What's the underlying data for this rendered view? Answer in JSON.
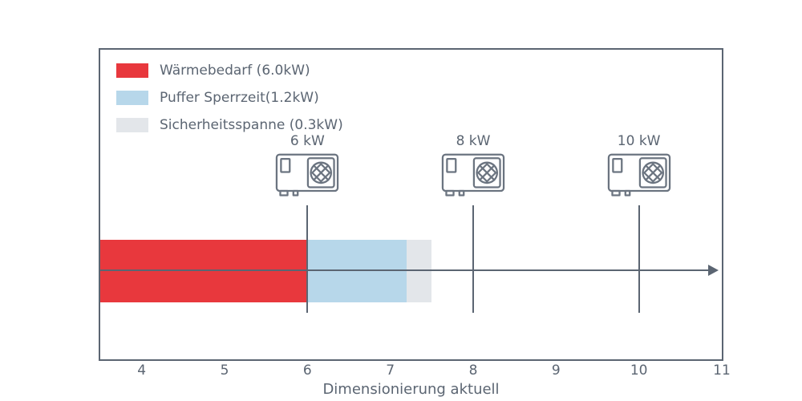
{
  "figure": {
    "background": "#ffffff",
    "axis_color": "#5b6572"
  },
  "chart_data": {
    "type": "bar",
    "orientation": "horizontal",
    "title": "",
    "xlabel": "Dimensionierung aktuell",
    "ylabel": "",
    "xlim": [
      3.5,
      11
    ],
    "x_ticks": [
      4,
      5,
      6,
      7,
      8,
      9,
      10,
      11
    ],
    "grid": false,
    "legend_position": "upper-left",
    "segments": [
      {
        "name": "Wärmebedarf",
        "legend_label": "Wärmebedarf (6.0kW)",
        "value_kw": 6.0,
        "start": 0,
        "end": 6.0,
        "color": "#e8383d"
      },
      {
        "name": "Puffer Sperrzeit",
        "legend_label": "Puffer Sperrzeit(1.2kW)",
        "value_kw": 1.2,
        "start": 6.0,
        "end": 7.2,
        "color": "#b7d7ea"
      },
      {
        "name": "Sicherheitsspanne",
        "legend_label": "Sicherheitsspanne (0.3kW)",
        "value_kw": 0.3,
        "start": 7.2,
        "end": 7.5,
        "color": "#e3e6ea"
      }
    ],
    "markers": [
      {
        "label": "6 kW",
        "x": 6
      },
      {
        "label": "8 kW",
        "x": 8
      },
      {
        "label": "10 kW",
        "x": 10
      }
    ]
  }
}
